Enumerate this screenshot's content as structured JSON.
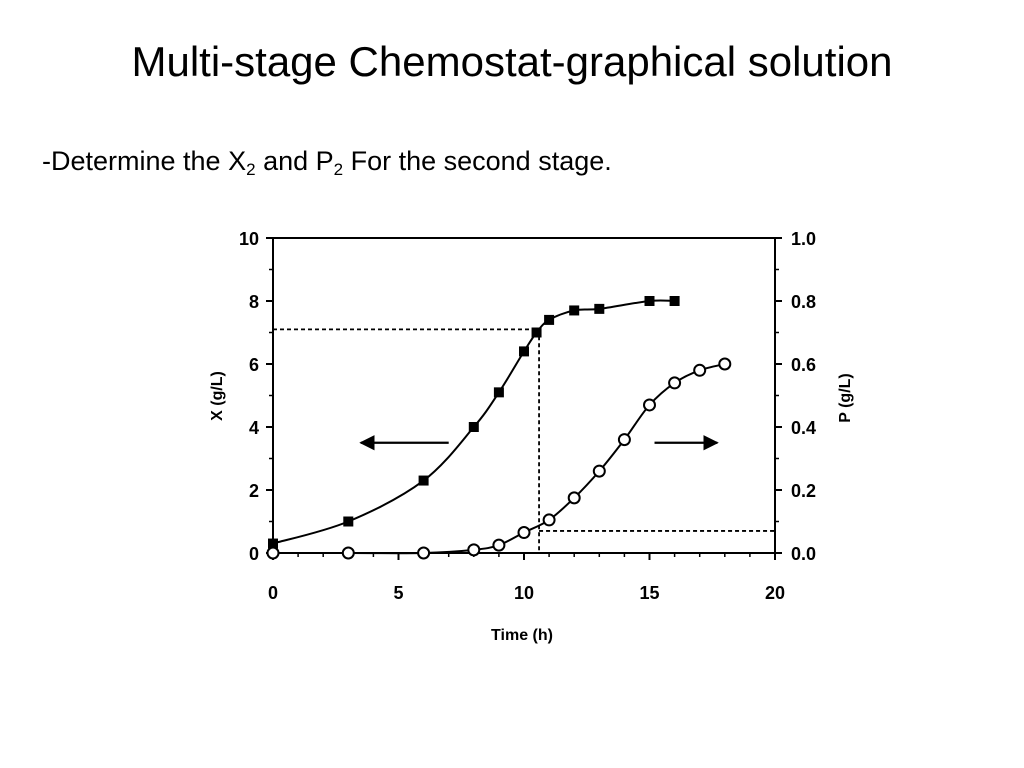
{
  "slide": {
    "title": "Multi-stage Chemostat-graphical solution",
    "bullet_prefix": "-Determine the X",
    "bullet_sub1": "2",
    "bullet_mid": " and P",
    "bullet_sub2": "2",
    "bullet_suffix": " For the second stage."
  },
  "chart_data": {
    "type": "scatter",
    "xlabel": "Time (h)",
    "ylabel_left": "X (g/L)",
    "ylabel_right": "P (g/L)",
    "xlim": [
      0,
      20
    ],
    "ylim_left": [
      0,
      10
    ],
    "ylim_right": [
      0,
      1.0
    ],
    "x_ticks": [
      "0",
      "5",
      "10",
      "15",
      "20"
    ],
    "y_left_ticks": [
      "0",
      "2",
      "4",
      "6",
      "8",
      "10"
    ],
    "y_right_ticks": [
      "0.0",
      "0.2",
      "0.4",
      "0.6",
      "0.8",
      "1.0"
    ],
    "grid": false,
    "series": [
      {
        "axis": "left",
        "marker": "filled-square",
        "x": [
          0,
          3,
          6,
          8,
          9,
          10,
          10.5,
          11,
          12,
          13,
          15,
          16
        ],
        "y": [
          0.3,
          1.0,
          2.3,
          4.0,
          5.1,
          6.4,
          7.0,
          7.4,
          7.7,
          7.75,
          8.0,
          8.0
        ]
      },
      {
        "axis": "right",
        "marker": "open-circle",
        "x": [
          0,
          3,
          6,
          8,
          9,
          10,
          11,
          12,
          13,
          14,
          15,
          16,
          17,
          18
        ],
        "y": [
          0.0,
          0.0,
          0.0,
          0.01,
          0.025,
          0.065,
          0.105,
          0.175,
          0.26,
          0.36,
          0.47,
          0.54,
          0.58,
          0.6
        ]
      }
    ],
    "guide_lines": {
      "x_at": 10.6,
      "x_level_left": 7.1,
      "p_level_right": 0.07
    },
    "annotations": [
      {
        "type": "arrow",
        "direction": "left",
        "meaning": "X uses left axis",
        "x_from": 7,
        "x_to": 3.5,
        "y_left": 3.5
      },
      {
        "type": "arrow",
        "direction": "right",
        "meaning": "P uses right axis",
        "x_from": 15.2,
        "x_to": 17.7,
        "y_left": 3.5
      }
    ],
    "colors": {
      "ink": "#000000",
      "background": "#ffffff"
    }
  }
}
